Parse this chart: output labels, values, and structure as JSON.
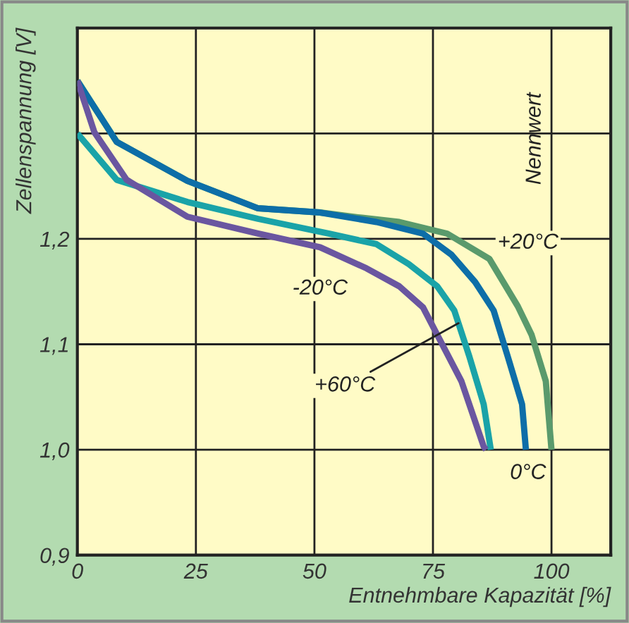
{
  "chart_data": {
    "type": "line",
    "xlabel": "Entnehmbare Kapazität [%]",
    "ylabel": "Zellenspannung [V]",
    "xlim": [
      0,
      112.5
    ],
    "ylim": [
      0.9,
      1.4
    ],
    "xticks": [
      0,
      25,
      50,
      75,
      100
    ],
    "yticks": [
      {
        "value": 0.9,
        "label": "0,9"
      },
      {
        "value": 1.0,
        "label": "1,0"
      },
      {
        "value": 1.1,
        "label": "1,1"
      },
      {
        "value": 1.2,
        "label": "1,2"
      },
      {
        "value": 1.3,
        "label": null
      },
      {
        "value": 1.4,
        "label": null
      }
    ],
    "grid": true,
    "legend": false,
    "marker": "none",
    "line_style": "solid",
    "series": [
      {
        "color": "#5a9a6c",
        "x": [
          0,
          8.3,
          23.2,
          38.1,
          51.2,
          60,
          67.9,
          78,
          86.9,
          92.9,
          95.8,
          98.8,
          100
        ],
        "values": [
          1.35,
          1.292,
          1.255,
          1.229,
          1.225,
          1.22,
          1.216,
          1.205,
          1.181,
          1.136,
          1.109,
          1.065,
          1.0
        ]
      },
      {
        "color": "#0d6ea8",
        "x": [
          0,
          8.3,
          23.2,
          38.1,
          51.2,
          63.1,
          72.9,
          78.9,
          83.9,
          87.8,
          90.8,
          93.8,
          94.6
        ],
        "values": [
          1.35,
          1.292,
          1.255,
          1.229,
          1.225,
          1.216,
          1.205,
          1.185,
          1.159,
          1.132,
          1.088,
          1.043,
          1.0
        ]
      },
      {
        "color": "#1aa3a8",
        "x": [
          0,
          8.3,
          23.2,
          38.1,
          53,
          63.1,
          69.9,
          75.9,
          79.5,
          82.7,
          85.7,
          87.2
        ],
        "values": [
          1.3,
          1.256,
          1.235,
          1.219,
          1.205,
          1.195,
          1.176,
          1.155,
          1.132,
          1.088,
          1.043,
          1.0
        ]
      },
      {
        "color": "#6a56a0",
        "x": [
          0,
          3.6,
          10.4,
          23.2,
          38.1,
          51.2,
          61,
          67.9,
          72.9,
          75.9,
          81,
          85.7,
          86.2
        ],
        "values": [
          1.35,
          1.301,
          1.256,
          1.221,
          1.205,
          1.192,
          1.172,
          1.155,
          1.135,
          1.109,
          1.065,
          1.003,
          1.0
        ]
      }
    ],
    "annotations": [
      "+20°C",
      "-20°C",
      {
        "text": "+60°C",
        "x": 80.4,
        "y": 1.12
      },
      "0°C",
      "Nennwert"
    ]
  }
}
